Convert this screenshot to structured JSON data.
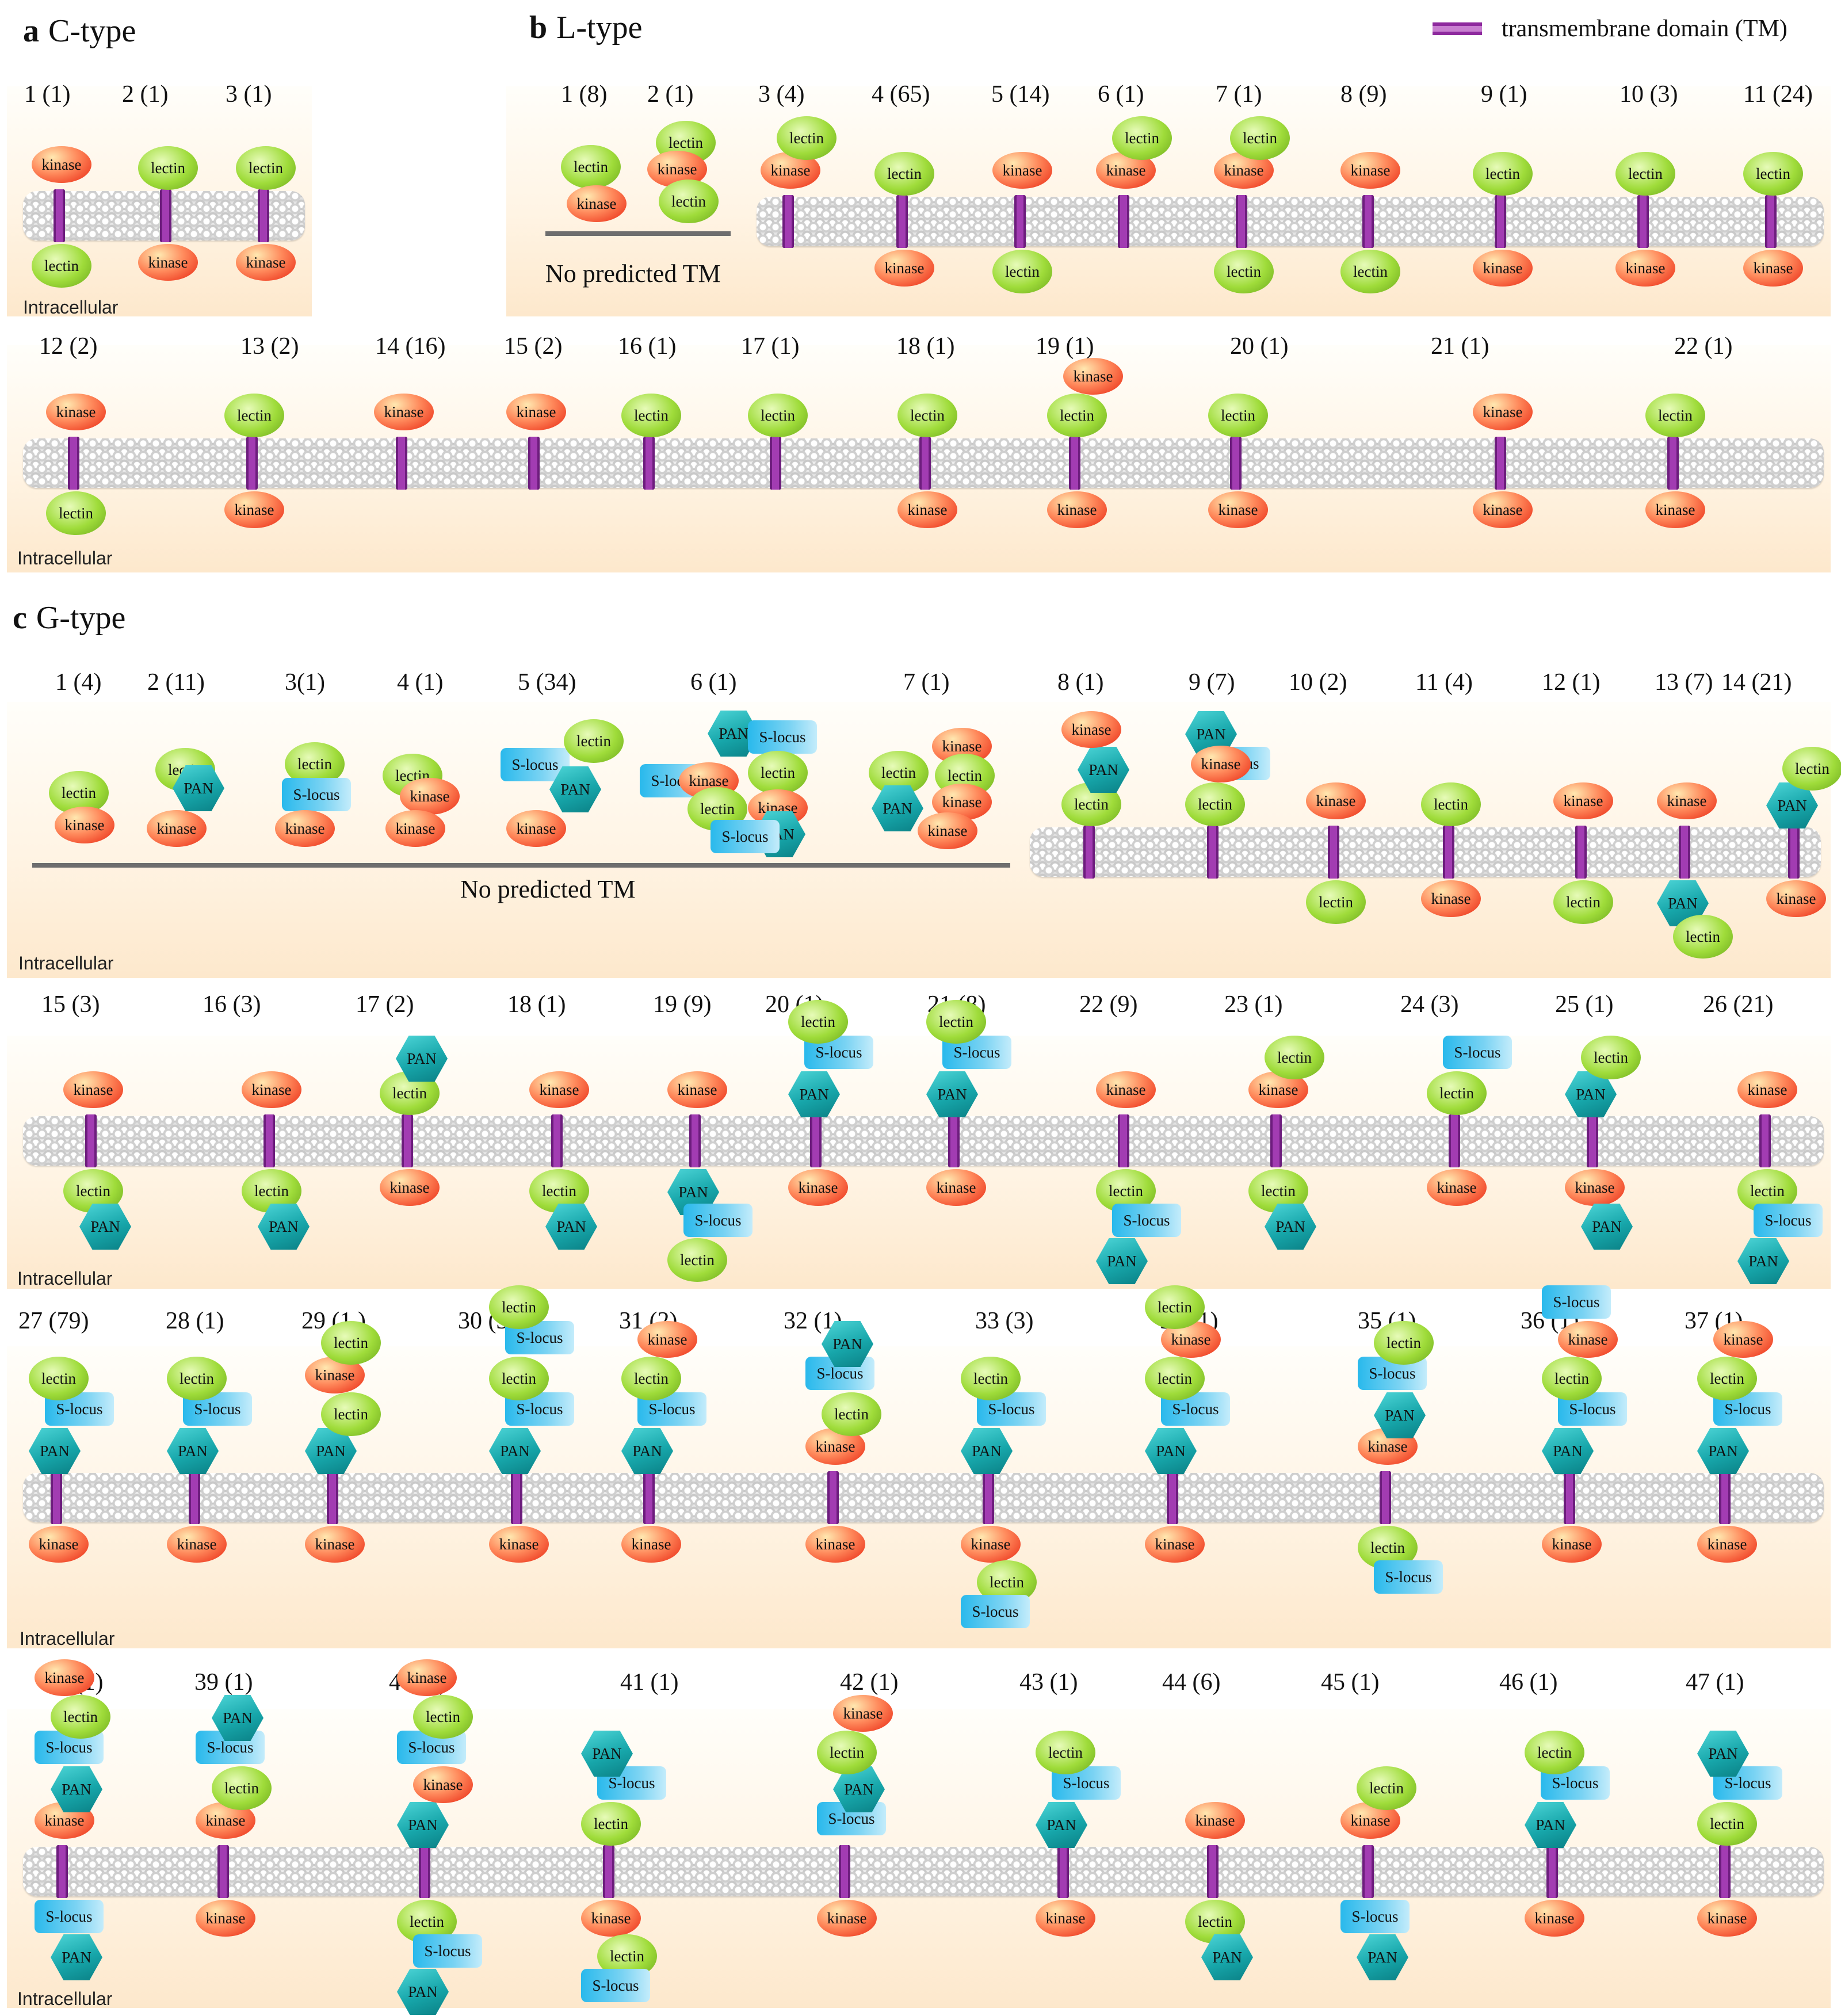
{
  "panels": {
    "a": {
      "letter": "a",
      "title": "C-type"
    },
    "b": {
      "letter": "b",
      "title": "L-type"
    },
    "c": {
      "letter": "c",
      "title": "G-type"
    }
  },
  "legend": {
    "label": "transmembrane domain (TM)",
    "swatch_color": "#a23cb2"
  },
  "region_label": "Intracellular",
  "no_tm_label": "No predicted TM",
  "domain_labels": {
    "lectin": "lectin",
    "kinase": "kinase",
    "pan": "PAN",
    "slocus": "S-locus"
  },
  "colors": {
    "lectin": "#9fdc3a",
    "kinase": "#f04a2a",
    "pan": "#17a6aa",
    "slocus": "#29b9ec",
    "membrane": "#d6d6d6",
    "tm": "#a23cb2"
  },
  "c_type": [
    "1 (1)",
    "2 (1)",
    "3 (1)"
  ],
  "l_type_row1": [
    "1 (8)",
    "2 (1)",
    "3 (4)",
    "4 (65)",
    "5 (14)",
    "6 (1)",
    "7 (1)",
    "8 (9)",
    "9 (1)",
    "10 (3)",
    "11 (24)"
  ],
  "l_type_row2": [
    "12 (2)",
    "13 (2)",
    "14 (16)",
    "15 (2)",
    "16 (1)",
    "17 (1)",
    "18 (1)",
    "19 (1)",
    "20 (1)",
    "21 (1)",
    "22 (1)"
  ],
  "g_type_row1": [
    "1 (4)",
    "2 (11)",
    "3(1)",
    "4 (1)",
    "5 (34)",
    "6 (1)",
    "7 (1)",
    "8 (1)",
    "9 (7)",
    "10 (2)",
    "11 (4)",
    "12 (1)",
    "13 (7)",
    "14 (21)"
  ],
  "g_type_row2": [
    "15 (3)",
    "16 (3)",
    "17 (2)",
    "18 (1)",
    "19 (9)",
    "20 (1)",
    "21 (8)",
    "22 (9)",
    "23 (1)",
    "24 (3)",
    "25 (1)",
    "26 (21)"
  ],
  "g_type_row3": [
    "27 (79)",
    "28 (1)",
    "29 (1 )",
    "30 (30)",
    "31 (2)",
    "32 (1)",
    "33 (3)",
    "34 (1)",
    "35 (1)",
    "36 (1)",
    "37 (1)"
  ],
  "g_type_row4": [
    "38 (1)",
    "39 (1)",
    "40 (1)",
    "41 (1)",
    "42 (1)",
    "43 (1)",
    "44 (6)",
    "45 (1)",
    "46 (1)",
    "47 (1)"
  ]
}
